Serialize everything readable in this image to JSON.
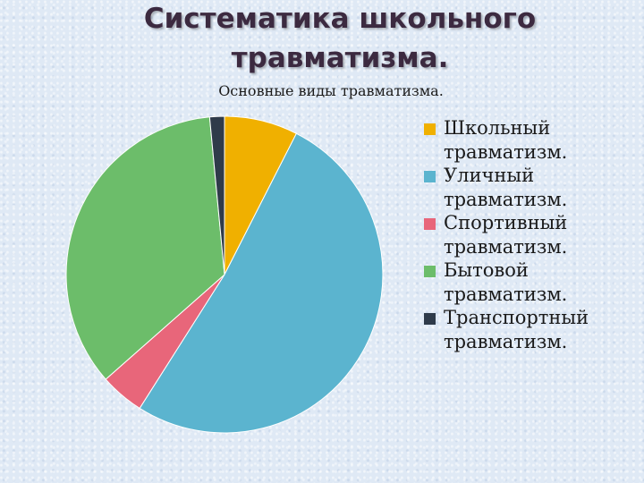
{
  "slide": {
    "title_line1": "Систематика школьного",
    "title_line2": "травматизма."
  },
  "chart_data": {
    "type": "pie",
    "title": "Основные виды травматизма.",
    "slices": [
      {
        "label": "Школьный травматизм.",
        "value": 7.5,
        "color": "#f0b000"
      },
      {
        "label": "Уличный травматизм.",
        "value": 51.5,
        "color": "#5bb4cf"
      },
      {
        "label": "Спортивный травматизм.",
        "value": 4.5,
        "color": "#e8667a"
      },
      {
        "label": "Бытовой травматизм.",
        "value": 35.0,
        "color": "#6cbd6a"
      },
      {
        "label": "Транспортный травматизм.",
        "value": 1.5,
        "color": "#2f3b4a"
      }
    ],
    "legend_position": "right"
  }
}
